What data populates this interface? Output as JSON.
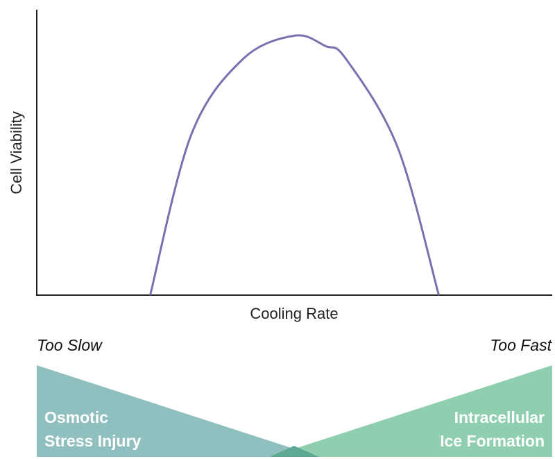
{
  "chart_data": {
    "type": "line",
    "xlabel": "Cooling Rate",
    "ylabel": "Cell Viability",
    "grid": false,
    "legend": "none",
    "series": [
      {
        "x": [
          0.22,
          0.3,
          0.4,
          0.5,
          0.56,
          0.6,
          0.7,
          0.78
        ],
        "values": [
          0.0,
          0.62,
          0.91,
          1.0,
          0.96,
          0.91,
          0.57,
          0.0
        ],
        "color": "#7b6fb0"
      }
    ],
    "xlim": [
      0,
      1
    ],
    "ylim": [
      0,
      1.1
    ]
  },
  "bottom_panel": {
    "left_label": "Too Slow",
    "right_label": "Too Fast",
    "left_zone": {
      "line1": "Osmotic",
      "line2": "Stress Injury",
      "color": "#8fbfbf"
    },
    "right_zone": {
      "line1": "Intracellular",
      "line2": "Ice Formation",
      "color": "#8fcfb0"
    },
    "overlap_color": "#5fa895",
    "text_color": "#ffffff"
  }
}
